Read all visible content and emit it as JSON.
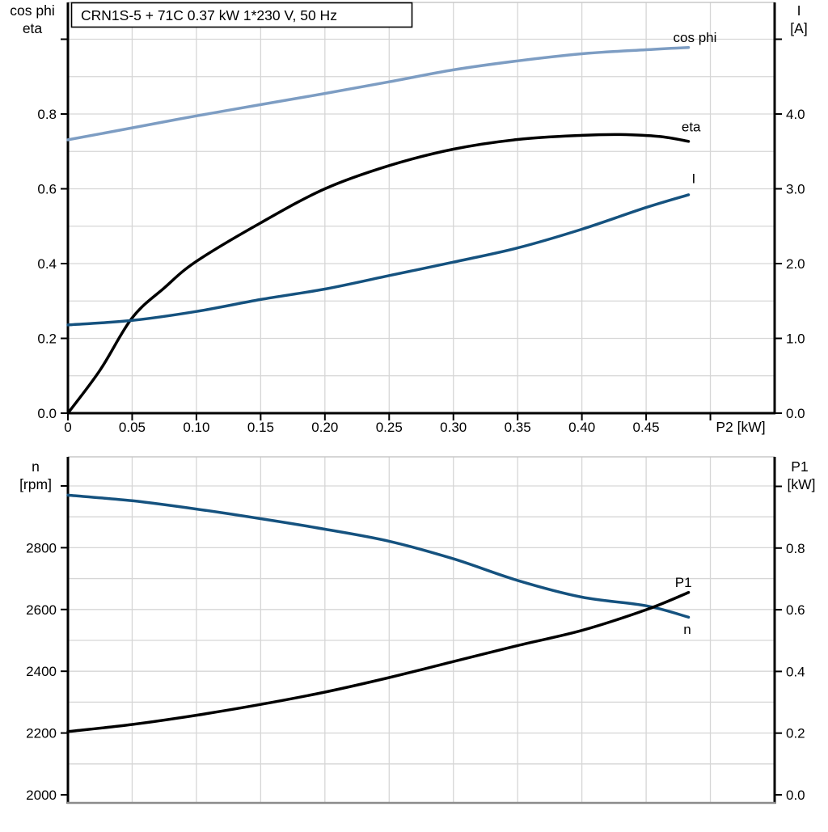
{
  "title": "CRN1S-5 + 71C   0.37 kW   1*230 V, 50 Hz",
  "colors": {
    "background": "#ffffff",
    "axis": "#000000",
    "gridline": "#d6d6d6",
    "frame_light": "#c8c8c8",
    "frame_gray": "#8c8c8c",
    "light_blue": "#7d9dc3",
    "dark_blue": "#15527f",
    "black": "#000000"
  },
  "chart_data": [
    {
      "type": "line",
      "title": "CRN1S-5 + 71C   0.37 kW   1*230 V, 50 Hz",
      "x_axis": {
        "label": "P2 [kW]",
        "range": [
          0,
          0.55
        ],
        "gridlines": [
          0.05,
          0.1,
          0.15,
          0.2,
          0.25,
          0.3,
          0.35,
          0.4,
          0.45,
          0.5
        ],
        "ticks": [
          {
            "v": 0,
            "label": "0"
          },
          {
            "v": 0.05,
            "label": "0.05"
          },
          {
            "v": 0.1,
            "label": "0.10"
          },
          {
            "v": 0.15,
            "label": "0.15"
          },
          {
            "v": 0.2,
            "label": "0.20"
          },
          {
            "v": 0.25,
            "label": "0.25"
          },
          {
            "v": 0.3,
            "label": "0.30"
          },
          {
            "v": 0.35,
            "label": "0.35"
          },
          {
            "v": 0.4,
            "label": "0.40"
          },
          {
            "v": 0.45,
            "label": "0.45"
          },
          {
            "v": 0.5,
            "label": ""
          }
        ]
      },
      "left_axis": {
        "title_lines": [
          "cos phi",
          "eta"
        ],
        "range": [
          0,
          1.0984
        ],
        "gridlines": [
          0.1,
          0.2,
          0.3,
          0.4,
          0.5,
          0.6,
          0.7,
          0.8,
          0.9,
          1.0
        ],
        "ticks": [
          {
            "v": 0.0,
            "label": "0.0"
          },
          {
            "v": 0.2,
            "label": "0.2"
          },
          {
            "v": 0.4,
            "label": "0.4"
          },
          {
            "v": 0.6,
            "label": "0.6"
          },
          {
            "v": 0.8,
            "label": "0.8"
          },
          {
            "v": 1.0,
            "label": ""
          }
        ]
      },
      "right_axis": {
        "title_lines": [
          "I",
          "[A]"
        ],
        "range": [
          0,
          5.492
        ],
        "ticks": [
          {
            "v": 0.0,
            "label": "0.0"
          },
          {
            "v": 1.0,
            "label": "1.0"
          },
          {
            "v": 2.0,
            "label": "2.0"
          },
          {
            "v": 3.0,
            "label": "3.0"
          },
          {
            "v": 4.0,
            "label": "4.0"
          },
          {
            "v": 5.0,
            "label": ""
          }
        ]
      },
      "series": [
        {
          "name": "cos phi",
          "axis": "left",
          "color": "#7d9dc3",
          "label_pos": {
            "x": 0.488,
            "y": 1.005
          },
          "x": [
            0,
            0.05,
            0.1,
            0.15,
            0.2,
            0.25,
            0.3,
            0.35,
            0.4,
            0.45,
            0.483
          ],
          "y": [
            0.731,
            0.763,
            0.795,
            0.825,
            0.855,
            0.886,
            0.918,
            0.942,
            0.961,
            0.972,
            0.978
          ]
        },
        {
          "name": "eta",
          "axis": "left",
          "color": "#000000",
          "label_pos": {
            "x": 0.485,
            "y": 0.766
          },
          "x": [
            0,
            0.025,
            0.05,
            0.075,
            0.1,
            0.15,
            0.2,
            0.25,
            0.3,
            0.35,
            0.4,
            0.43,
            0.46,
            0.483
          ],
          "y": [
            0,
            0.115,
            0.255,
            0.335,
            0.406,
            0.509,
            0.6,
            0.662,
            0.706,
            0.732,
            0.743,
            0.745,
            0.74,
            0.727
          ]
        },
        {
          "name": "I",
          "axis": "right",
          "color": "#15527f",
          "label_pos": {
            "x": 0.487,
            "y": 3.14
          },
          "x": [
            0,
            0.05,
            0.1,
            0.15,
            0.2,
            0.25,
            0.3,
            0.35,
            0.4,
            0.45,
            0.483
          ],
          "y": [
            1.18,
            1.24,
            1.36,
            1.52,
            1.66,
            1.84,
            2.02,
            2.21,
            2.46,
            2.75,
            2.92
          ]
        }
      ]
    },
    {
      "type": "line",
      "title": "",
      "x_axis": {
        "label": "",
        "range": [
          0,
          0.55
        ],
        "gridlines": [
          0.05,
          0.1,
          0.15,
          0.2,
          0.25,
          0.3,
          0.35,
          0.4,
          0.45,
          0.5
        ],
        "ticks": []
      },
      "left_axis": {
        "title_lines": [
          "n",
          "[rpm]"
        ],
        "range": [
          1973.8,
          3094.2
        ],
        "gridlines": [
          2100,
          2200,
          2300,
          2400,
          2500,
          2600,
          2700,
          2800,
          2900,
          3000
        ],
        "ticks": [
          {
            "v": 2000,
            "label": "2000"
          },
          {
            "v": 2200,
            "label": "2200"
          },
          {
            "v": 2400,
            "label": "2400"
          },
          {
            "v": 2600,
            "label": "2600"
          },
          {
            "v": 2800,
            "label": "2800"
          },
          {
            "v": 3000,
            "label": ""
          }
        ]
      },
      "right_axis": {
        "title_lines": [
          "P1",
          "[kW]"
        ],
        "range": [
          -0.0262,
          1.0957
        ],
        "ticks": [
          {
            "v": 0.0,
            "label": "0.0"
          },
          {
            "v": 0.2,
            "label": "0.2"
          },
          {
            "v": 0.4,
            "label": "0.4"
          },
          {
            "v": 0.6,
            "label": "0.6"
          },
          {
            "v": 0.8,
            "label": "0.8"
          },
          {
            "v": 1.0,
            "label": ""
          }
        ]
      },
      "series": [
        {
          "name": "n",
          "axis": "left",
          "color": "#15527f",
          "label_pos": {
            "x": 0.482,
            "y": 2537
          },
          "x": [
            0,
            0.05,
            0.1,
            0.15,
            0.2,
            0.25,
            0.3,
            0.35,
            0.4,
            0.45,
            0.483
          ],
          "y": [
            2970,
            2952,
            2925,
            2894,
            2860,
            2821,
            2764,
            2694,
            2640,
            2612,
            2575
          ]
        },
        {
          "name": "P1",
          "axis": "right",
          "color": "#000000",
          "label_pos": {
            "x": 0.479,
            "y": 0.689
          },
          "x": [
            0,
            0.05,
            0.1,
            0.15,
            0.2,
            0.25,
            0.3,
            0.35,
            0.4,
            0.45,
            0.483
          ],
          "y": [
            0.205,
            0.228,
            0.258,
            0.293,
            0.333,
            0.38,
            0.432,
            0.484,
            0.533,
            0.6,
            0.656
          ]
        }
      ]
    }
  ]
}
